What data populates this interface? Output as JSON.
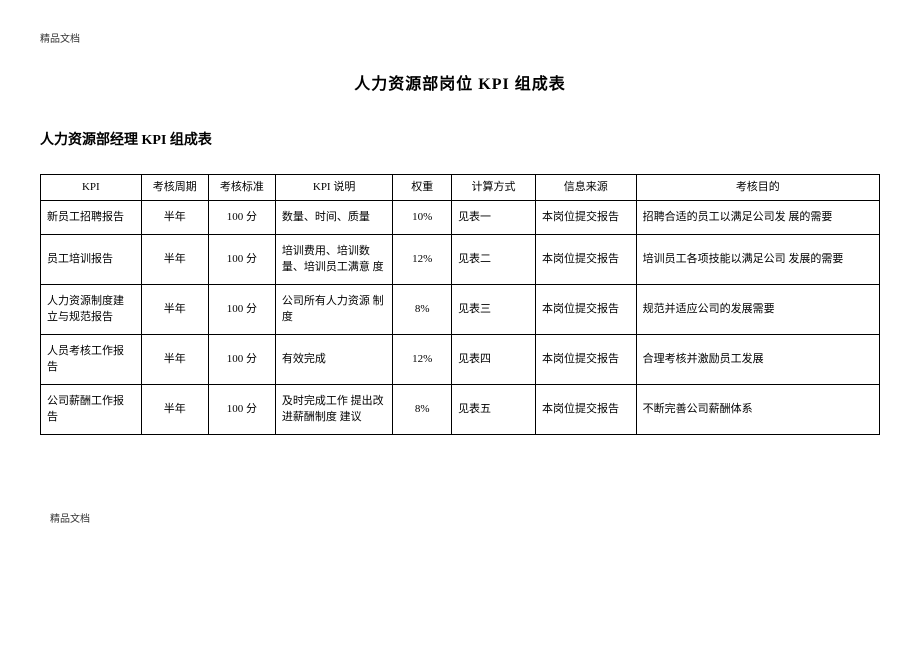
{
  "document": {
    "header_label": "精品文档",
    "main_title": "人力资源部岗位 KPI 组成表",
    "sub_title": "人力资源部经理 KPI 组成表",
    "footer_label": "精品文档"
  },
  "table": {
    "columns": [
      "KPI",
      "考核周期",
      "考核标准",
      "KPI 说明",
      "权重",
      "计算方式",
      "信息来源",
      "考核目的"
    ],
    "rows": [
      {
        "kpi": "新员工招聘报告",
        "period": "半年",
        "standard": "100 分",
        "desc": "数量、时间、质量",
        "weight": "10%",
        "calc": "见表一",
        "source": "本岗位提交报告",
        "goal": "招聘合适的员工以满足公司发 展的需要"
      },
      {
        "kpi": "员工培训报告",
        "period": "半年",
        "standard": "100 分",
        "desc": "培训费用、培训数 量、培训员工满意 度",
        "weight": "12%",
        "calc": "见表二",
        "source": "本岗位提交报告",
        "goal": "培训员工各项技能以满足公司 发展的需要"
      },
      {
        "kpi": "人力资源制度建 立与规范报告",
        "period": "半年",
        "standard": "100 分",
        "desc": "公司所有人力资源 制度",
        "weight": "8%",
        "calc": "见表三",
        "source": "本岗位提交报告",
        "goal": "规范并适应公司的发展需要"
      },
      {
        "kpi": "人员考核工作报告",
        "period": "半年",
        "standard": "100 分",
        "desc": "有效完成",
        "weight": "12%",
        "calc": "见表四",
        "source": "本岗位提交报告",
        "goal": "合理考核并激励员工发展"
      },
      {
        "kpi": "公司薪酬工作报告",
        "period": "半年",
        "standard": "100 分",
        "desc": "及时完成工作 提出改进薪酬制度 建议",
        "weight": "8%",
        "calc": "见表五",
        "source": "本岗位提交报告",
        "goal": "不断完善公司薪酬体系"
      }
    ]
  }
}
